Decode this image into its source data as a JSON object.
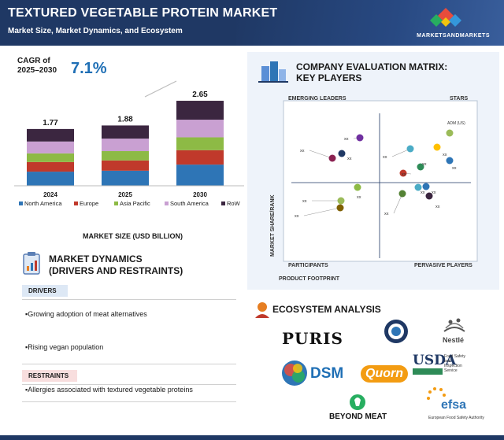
{
  "header": {
    "title": "TEXTURED VEGETABLE PROTEIN MARKET",
    "subtitle": "Market Size, Market Dynamics, and Ecosystem",
    "brand": "MARKETSANDMARKETS"
  },
  "cagr": {
    "label_line1": "CAGR of",
    "label_line2": "2025–2030",
    "value": "7.1%"
  },
  "chart_data": {
    "type": "bar",
    "stacked": true,
    "categories": [
      "2024",
      "2025",
      "2030"
    ],
    "totals": [
      1.77,
      1.88,
      2.65
    ],
    "total_labels": [
      "1.77",
      "1.88",
      "2.65"
    ],
    "series": [
      {
        "name": "North America",
        "color": "#2e75b6",
        "values": [
          0.44,
          0.47,
          0.66
        ]
      },
      {
        "name": "Europe",
        "color": "#c0392b",
        "values": [
          0.3,
          0.32,
          0.45
        ]
      },
      {
        "name": "Asia Pacific",
        "color": "#8dba45",
        "values": [
          0.27,
          0.29,
          0.4
        ]
      },
      {
        "name": "South America",
        "color": "#c9a0d2",
        "values": [
          0.37,
          0.39,
          0.55
        ]
      },
      {
        "name": "RoW",
        "color": "#3b2640",
        "values": [
          0.39,
          0.41,
          0.59
        ]
      }
    ],
    "xlabel": "MARKET SIZE (USD BILLION)",
    "legend_position": "bottom"
  },
  "market_dynamics": {
    "title_line1": "MARKET DYNAMICS",
    "title_line2": "(DRIVERS AND RESTRAINTS)",
    "drivers_label": "DRIVERS",
    "drivers": [
      "Growing adoption of meat alternatives",
      "Rising vegan population"
    ],
    "restraints_label": "RESTRAINTS",
    "restraints": [
      "Allergies associated with textured vegetable proteins"
    ]
  },
  "company_matrix": {
    "title_line1": "COMPANY EVALUATION MATRIX:",
    "title_line2": "KEY PLAYERS",
    "quadrants": {
      "top_left": "EMERGING LEADERS",
      "top_right": "STARS",
      "bottom_left": "PARTICIPANTS",
      "bottom_right": "PERVASIVE PLAYERS"
    },
    "y_axis": "MARKET SHARE/RANK",
    "x_axis": "PRODUCT FOOTPRINT",
    "points": [
      {
        "label": "ADM (US)",
        "color": "#9bbb59"
      },
      {
        "label": "xx",
        "color": "#ffc000"
      },
      {
        "label": "xx",
        "color": "#2e75b6"
      },
      {
        "label": "xx",
        "color": "#2e8b57"
      },
      {
        "label": "xx",
        "color": "#c0392b"
      },
      {
        "label": "xx",
        "color": "#4bacc6"
      },
      {
        "label": "xx",
        "color": "#8b2252"
      },
      {
        "label": "xx",
        "color": "#7030a0"
      },
      {
        "label": "xx",
        "color": "#1f3864"
      },
      {
        "label": "xx",
        "color": "#2e75b6"
      },
      {
        "label": "xx",
        "color": "#3b2640"
      },
      {
        "label": "xx",
        "color": "#548235"
      },
      {
        "label": "xx",
        "color": "#8dba45"
      },
      {
        "label": "xx",
        "color": "#9bbb59"
      },
      {
        "label": "xx",
        "color": "#7f6000"
      },
      {
        "label": "xx",
        "color": "#4bacc6"
      }
    ]
  },
  "ecosystem": {
    "title": "ECOSYSTEM ANALYSIS",
    "logos": [
      "PURIS",
      "Nestlé",
      "DSM",
      "Quorn",
      "USDA",
      "BEYOND MEAT",
      "efsa"
    ],
    "usda_sub": "Food Safety and Inspection Service",
    "efsa_sub": "European Food Safety Authority"
  }
}
